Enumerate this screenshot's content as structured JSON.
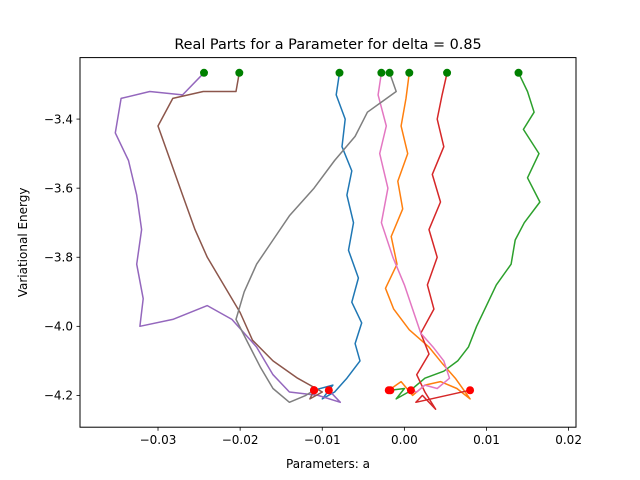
{
  "chart_data": {
    "type": "line",
    "title": "Real Parts for a Parameter for delta = 0.85",
    "xlabel": "Parameters: a",
    "ylabel": "Variational Energy",
    "xlim": [
      -0.0395,
      0.0209
    ],
    "ylim": [
      -4.292,
      -3.222
    ],
    "x_ticks": [
      -0.03,
      -0.02,
      -0.01,
      0.0,
      0.01,
      0.02
    ],
    "x_tick_labels": [
      "−0.03",
      "−0.02",
      "−0.01",
      "0.00",
      "0.01",
      "0.02"
    ],
    "y_ticks": [
      -4.2,
      -4.0,
      -3.8,
      -3.6,
      -3.4
    ],
    "y_tick_labels": [
      "−4.2",
      "−4.0",
      "−3.8",
      "−3.6",
      "−3.4"
    ],
    "grid": false,
    "start_marker_color": "#008000",
    "end_marker_color": "#ff0000",
    "series": [
      {
        "color": "#1f77b4",
        "points": [
          [
            -0.0079,
            -3.266
          ],
          [
            -0.0083,
            -3.33
          ],
          [
            -0.0072,
            -3.4
          ],
          [
            -0.0076,
            -3.48
          ],
          [
            -0.0064,
            -3.55
          ],
          [
            -0.007,
            -3.62
          ],
          [
            -0.0062,
            -3.7
          ],
          [
            -0.0068,
            -3.78
          ],
          [
            -0.0056,
            -3.86
          ],
          [
            -0.0064,
            -3.93
          ],
          [
            -0.0052,
            -3.99
          ],
          [
            -0.006,
            -4.05
          ],
          [
            -0.0054,
            -4.1
          ],
          [
            -0.007,
            -4.15
          ],
          [
            -0.0085,
            -4.19
          ],
          [
            -0.01,
            -4.21
          ],
          [
            -0.0087,
            -4.17
          ],
          [
            -0.011,
            -4.185
          ]
        ]
      },
      {
        "color": "#ff7f0e",
        "points": [
          [
            0.0006,
            -3.266
          ],
          [
            0.0002,
            -3.34
          ],
          [
            -0.0004,
            -3.42
          ],
          [
            0.0004,
            -3.5
          ],
          [
            -0.0008,
            -3.58
          ],
          [
            -0.0002,
            -3.66
          ],
          [
            -0.0016,
            -3.74
          ],
          [
            -0.0009,
            -3.82
          ],
          [
            -0.0023,
            -3.89
          ],
          [
            -0.0013,
            -3.95
          ],
          [
            0.0006,
            -4.01
          ],
          [
            0.003,
            -4.06
          ],
          [
            0.0047,
            -4.11
          ],
          [
            0.0062,
            -4.15
          ],
          [
            0.008,
            -4.21
          ],
          [
            0.0064,
            -4.18
          ],
          [
            0.0044,
            -4.16
          ],
          [
            0.0025,
            -4.17
          ],
          [
            0.001,
            -4.2
          ],
          [
            -0.0004,
            -4.16
          ],
          [
            -0.0019,
            -4.185
          ]
        ]
      },
      {
        "color": "#2ca02c",
        "points": [
          [
            0.0139,
            -3.266
          ],
          [
            0.015,
            -3.32
          ],
          [
            0.0158,
            -3.38
          ],
          [
            0.0145,
            -3.43
          ],
          [
            0.0164,
            -3.5
          ],
          [
            0.015,
            -3.57
          ],
          [
            0.0165,
            -3.64
          ],
          [
            0.0146,
            -3.7
          ],
          [
            0.0135,
            -3.75
          ],
          [
            0.013,
            -3.82
          ],
          [
            0.0112,
            -3.88
          ],
          [
            0.01,
            -3.94
          ],
          [
            0.0088,
            -4.0
          ],
          [
            0.0078,
            -4.06
          ],
          [
            0.0065,
            -4.1
          ],
          [
            0.0048,
            -4.13
          ],
          [
            0.0025,
            -4.15
          ],
          [
            0.0005,
            -4.19
          ],
          [
            -0.001,
            -4.21
          ],
          [
            0.0,
            -4.18
          ],
          [
            -0.0017,
            -4.185
          ]
        ]
      },
      {
        "color": "#d62728",
        "points": [
          [
            0.0052,
            -3.266
          ],
          [
            0.0046,
            -3.33
          ],
          [
            0.004,
            -3.4
          ],
          [
            0.0048,
            -3.48
          ],
          [
            0.0034,
            -3.56
          ],
          [
            0.0044,
            -3.64
          ],
          [
            0.003,
            -3.72
          ],
          [
            0.004,
            -3.8
          ],
          [
            0.0028,
            -3.88
          ],
          [
            0.0036,
            -3.95
          ],
          [
            0.002,
            -4.02
          ],
          [
            0.003,
            -4.08
          ],
          [
            0.0015,
            -4.14
          ],
          [
            0.0025,
            -4.19
          ],
          [
            0.0038,
            -4.24
          ],
          [
            0.0022,
            -4.2
          ],
          [
            0.0014,
            -4.22
          ],
          [
            0.008,
            -4.185
          ]
        ]
      },
      {
        "color": "#9467bd",
        "points": [
          [
            -0.0244,
            -3.266
          ],
          [
            -0.027,
            -3.33
          ],
          [
            -0.031,
            -3.32
          ],
          [
            -0.0345,
            -3.34
          ],
          [
            -0.0352,
            -3.44
          ],
          [
            -0.0336,
            -3.52
          ],
          [
            -0.0326,
            -3.62
          ],
          [
            -0.032,
            -3.72
          ],
          [
            -0.0326,
            -3.82
          ],
          [
            -0.0318,
            -3.92
          ],
          [
            -0.0322,
            -4.0
          ],
          [
            -0.0282,
            -3.98
          ],
          [
            -0.024,
            -3.94
          ],
          [
            -0.021,
            -3.98
          ],
          [
            -0.018,
            -4.06
          ],
          [
            -0.016,
            -4.14
          ],
          [
            -0.014,
            -4.19
          ],
          [
            -0.0105,
            -4.2
          ],
          [
            -0.0078,
            -4.22
          ],
          [
            -0.0092,
            -4.185
          ]
        ]
      },
      {
        "color": "#8c564b",
        "points": [
          [
            -0.0201,
            -3.266
          ],
          [
            -0.0205,
            -3.32
          ],
          [
            -0.0245,
            -3.32
          ],
          [
            -0.0282,
            -3.34
          ],
          [
            -0.03,
            -3.42
          ],
          [
            -0.0285,
            -3.52
          ],
          [
            -0.027,
            -3.62
          ],
          [
            -0.0255,
            -3.72
          ],
          [
            -0.024,
            -3.8
          ],
          [
            -0.022,
            -3.88
          ],
          [
            -0.02,
            -3.96
          ],
          [
            -0.0185,
            -4.04
          ],
          [
            -0.016,
            -4.1
          ],
          [
            -0.013,
            -4.15
          ],
          [
            -0.01,
            -4.19
          ],
          [
            -0.0115,
            -4.21
          ],
          [
            -0.011,
            -4.185
          ]
        ]
      },
      {
        "color": "#e377c2",
        "points": [
          [
            -0.0028,
            -3.266
          ],
          [
            -0.0032,
            -3.33
          ],
          [
            -0.0022,
            -3.42
          ],
          [
            -0.003,
            -3.5
          ],
          [
            -0.002,
            -3.6
          ],
          [
            -0.0028,
            -3.7
          ],
          [
            -0.0014,
            -3.8
          ],
          [
            0.0,
            -3.88
          ],
          [
            0.001,
            -3.95
          ],
          [
            0.002,
            -4.02
          ],
          [
            0.0035,
            -4.06
          ],
          [
            0.0048,
            -4.1
          ],
          [
            0.0055,
            -4.15
          ],
          [
            0.004,
            -4.18
          ],
          [
            0.0025,
            -4.17
          ],
          [
            0.0015,
            -4.19
          ],
          [
            0.0008,
            -4.185
          ]
        ]
      },
      {
        "color": "#7f7f7f",
        "points": [
          [
            -0.0018,
            -3.266
          ],
          [
            -0.001,
            -3.32
          ],
          [
            -0.0045,
            -3.38
          ],
          [
            -0.006,
            -3.45
          ],
          [
            -0.0085,
            -3.52
          ],
          [
            -0.011,
            -3.6
          ],
          [
            -0.014,
            -3.68
          ],
          [
            -0.016,
            -3.75
          ],
          [
            -0.018,
            -3.82
          ],
          [
            -0.0195,
            -3.9
          ],
          [
            -0.0205,
            -3.98
          ],
          [
            -0.019,
            -4.05
          ],
          [
            -0.0175,
            -4.12
          ],
          [
            -0.016,
            -4.18
          ],
          [
            -0.014,
            -4.22
          ],
          [
            -0.012,
            -4.2
          ],
          [
            -0.011,
            -4.185
          ]
        ]
      }
    ]
  }
}
